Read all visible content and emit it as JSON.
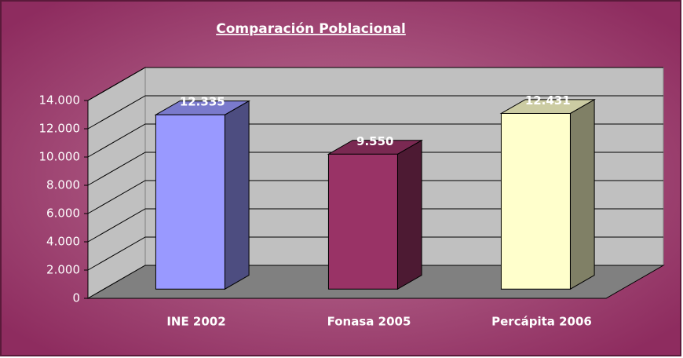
{
  "chart_data": {
    "type": "bar3d",
    "title": "Comparación Poblacional",
    "categories": [
      "INE 2002",
      "Fonasa 2005",
      "Percápita 2006"
    ],
    "values": [
      12335,
      9550,
      12431
    ],
    "value_labels": [
      "12.335",
      "9.550",
      "12.431"
    ],
    "colors": [
      "#9999ff",
      "#993366",
      "#ffffcc"
    ],
    "ylim": [
      0,
      14000
    ],
    "yticks": [
      0,
      {
        "value": 2000,
        "label": "2.000"
      },
      {
        "value": 4000,
        "label": "4.000"
      },
      {
        "value": 6000,
        "label": "6.000"
      },
      {
        "value": 8000,
        "label": "8.000"
      },
      {
        "value": 10000,
        "label": "10.000"
      },
      {
        "value": 12000,
        "label": "12.000"
      },
      {
        "value": 14000,
        "label": "14.000"
      }
    ],
    "grid": true
  }
}
